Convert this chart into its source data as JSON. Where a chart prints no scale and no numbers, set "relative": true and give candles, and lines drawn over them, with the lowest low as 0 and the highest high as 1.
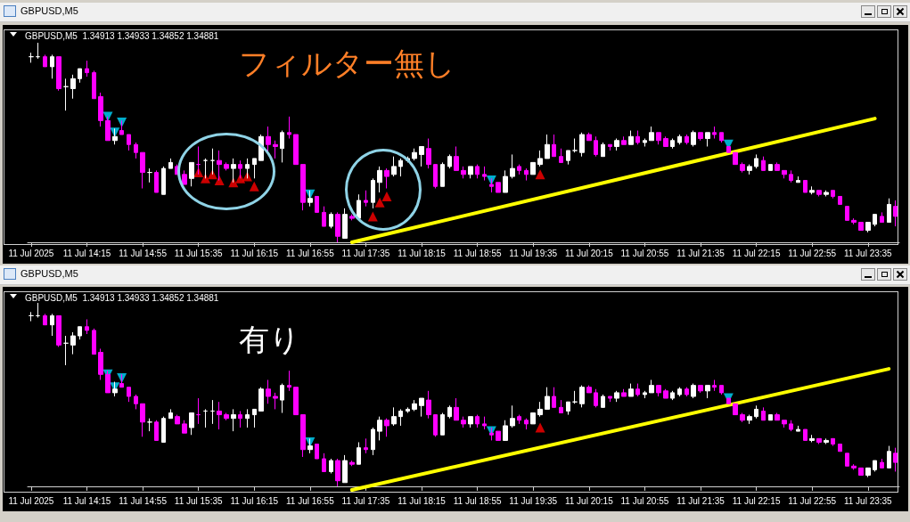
{
  "chart_data": [
    {
      "type": "candlestick",
      "title": "GBPUSD,M5",
      "subtitle": "GBPUSD,M5  1.34913 1.34933 1.34852 1.34881",
      "annotations": [
        "フィルター無し"
      ],
      "relative": true,
      "categories": [
        "11 Jul 2025",
        null,
        null,
        null,
        null,
        null,
        null,
        null,
        "11 Jul 14:15",
        null,
        null,
        null,
        null,
        null,
        null,
        null,
        "11 Jul 14:55",
        null,
        null,
        null,
        null,
        null,
        null,
        null,
        "11 Jul 15:35",
        null,
        null,
        null,
        null,
        null,
        null,
        null,
        "11 Jul 16:15",
        null,
        null,
        null,
        null,
        null,
        null,
        null,
        "11 Jul 16:55",
        null,
        null,
        null,
        null,
        null,
        null,
        null,
        "11 Jul 17:35",
        null,
        null,
        null,
        null,
        null,
        null,
        null,
        "11 Jul 18:15",
        null,
        null,
        null,
        null,
        null,
        null,
        null,
        "11 Jul 18:55",
        null,
        null,
        null,
        null,
        null,
        null,
        null,
        "11 Jul 19:35",
        null,
        null,
        null,
        null,
        null,
        null,
        null,
        "11 Jul 20:15",
        null,
        null,
        null,
        null,
        null,
        null,
        null,
        "11 Jul 20:55",
        null,
        null,
        null,
        null,
        null,
        null,
        null,
        "11 Jul 21:35",
        null,
        null,
        null,
        null,
        null,
        null,
        null,
        "11 Jul 22:15",
        null,
        null,
        null,
        null,
        null,
        null,
        null,
        "11 Jul 22:55",
        null,
        null,
        null,
        null,
        null,
        null,
        null,
        "11 Jul 23:35",
        null,
        null,
        null,
        null
      ],
      "ohlc": [
        [
          0.93,
          0.95,
          0.9,
          0.93
        ],
        [
          0.93,
          1.0,
          0.92,
          0.93
        ],
        [
          0.93,
          0.94,
          0.88,
          0.88
        ],
        [
          0.88,
          0.94,
          0.82,
          0.93
        ],
        [
          0.93,
          0.93,
          0.76,
          0.77
        ],
        [
          0.78,
          0.82,
          0.66,
          0.78
        ],
        [
          0.77,
          0.84,
          0.72,
          0.82
        ],
        [
          0.82,
          0.87,
          0.8,
          0.87
        ],
        [
          0.87,
          0.91,
          0.83,
          0.85
        ],
        [
          0.85,
          0.86,
          0.72,
          0.72
        ],
        [
          0.73,
          0.75,
          0.58,
          0.61
        ],
        [
          0.61,
          0.63,
          0.51,
          0.51
        ],
        [
          0.51,
          0.57,
          0.49,
          0.53
        ],
        [
          0.56,
          0.61,
          0.54,
          0.54
        ],
        [
          0.54,
          0.54,
          0.46,
          0.49
        ],
        [
          0.49,
          0.5,
          0.42,
          0.45
        ],
        [
          0.45,
          0.45,
          0.27,
          0.35
        ],
        [
          0.35,
          0.37,
          0.3,
          0.35
        ],
        [
          0.35,
          0.36,
          0.25,
          0.25
        ],
        [
          0.24,
          0.38,
          0.24,
          0.37
        ],
        [
          0.37,
          0.42,
          0.37,
          0.4
        ],
        [
          0.38,
          0.39,
          0.34,
          0.34
        ],
        [
          0.34,
          0.36,
          0.29,
          0.29
        ],
        [
          0.32,
          0.4,
          0.28,
          0.4
        ],
        [
          0.39,
          0.48,
          0.34,
          0.39
        ],
        [
          0.41,
          0.42,
          0.32,
          0.41
        ],
        [
          0.41,
          0.47,
          0.34,
          0.41
        ],
        [
          0.41,
          0.46,
          0.31,
          0.39
        ],
        [
          0.39,
          0.4,
          0.36,
          0.37
        ],
        [
          0.37,
          0.42,
          0.3,
          0.39
        ],
        [
          0.39,
          0.41,
          0.32,
          0.37
        ],
        [
          0.37,
          0.42,
          0.32,
          0.39
        ],
        [
          0.39,
          0.42,
          0.32,
          0.42
        ],
        [
          0.41,
          0.54,
          0.41,
          0.53
        ],
        [
          0.53,
          0.58,
          0.45,
          0.49
        ],
        [
          0.49,
          0.51,
          0.42,
          0.48
        ],
        [
          0.47,
          0.56,
          0.4,
          0.55
        ],
        [
          0.55,
          0.63,
          0.52,
          0.54
        ],
        [
          0.54,
          0.54,
          0.39,
          0.39
        ],
        [
          0.39,
          0.39,
          0.16,
          0.2
        ],
        [
          0.2,
          0.26,
          0.18,
          0.22
        ],
        [
          0.23,
          0.23,
          0.15,
          0.15
        ],
        [
          0.15,
          0.18,
          0.08,
          0.08
        ],
        [
          0.08,
          0.15,
          0.07,
          0.14
        ],
        [
          0.14,
          0.15,
          0.0,
          0.03
        ],
        [
          0.02,
          0.17,
          0.02,
          0.14
        ],
        [
          0.13,
          0.14,
          0.11,
          0.12
        ],
        [
          0.12,
          0.24,
          0.12,
          0.21
        ],
        [
          0.21,
          0.26,
          0.18,
          0.2
        ],
        [
          0.2,
          0.32,
          0.17,
          0.31
        ],
        [
          0.3,
          0.38,
          0.25,
          0.36
        ],
        [
          0.36,
          0.37,
          0.27,
          0.33
        ],
        [
          0.34,
          0.43,
          0.33,
          0.38
        ],
        [
          0.38,
          0.42,
          0.33,
          0.41
        ],
        [
          0.41,
          0.43,
          0.4,
          0.42
        ],
        [
          0.42,
          0.47,
          0.41,
          0.45
        ],
        [
          0.44,
          0.48,
          0.38,
          0.48
        ],
        [
          0.47,
          0.52,
          0.37,
          0.39
        ],
        [
          0.39,
          0.39,
          0.27,
          0.28
        ],
        [
          0.28,
          0.4,
          0.28,
          0.39
        ],
        [
          0.38,
          0.44,
          0.37,
          0.43
        ],
        [
          0.43,
          0.48,
          0.36,
          0.36
        ],
        [
          0.36,
          0.38,
          0.32,
          0.34
        ],
        [
          0.34,
          0.38,
          0.32,
          0.38
        ],
        [
          0.38,
          0.39,
          0.32,
          0.34
        ],
        [
          0.34,
          0.38,
          0.31,
          0.33
        ],
        [
          0.29,
          0.32,
          0.25,
          0.28
        ],
        [
          0.3,
          0.3,
          0.25,
          0.25
        ],
        [
          0.25,
          0.36,
          0.25,
          0.33
        ],
        [
          0.33,
          0.44,
          0.32,
          0.37
        ],
        [
          0.38,
          0.39,
          0.34,
          0.36
        ],
        [
          0.36,
          0.37,
          0.31,
          0.34
        ],
        [
          0.34,
          0.4,
          0.34,
          0.4
        ],
        [
          0.39,
          0.46,
          0.38,
          0.42
        ],
        [
          0.42,
          0.54,
          0.42,
          0.49
        ],
        [
          0.49,
          0.54,
          0.43,
          0.43
        ],
        [
          0.43,
          0.47,
          0.4,
          0.4
        ],
        [
          0.41,
          0.46,
          0.39,
          0.46
        ],
        [
          0.46,
          0.52,
          0.45,
          0.46
        ],
        [
          0.45,
          0.55,
          0.43,
          0.54
        ],
        [
          0.54,
          0.55,
          0.51,
          0.51
        ],
        [
          0.51,
          0.53,
          0.43,
          0.44
        ],
        [
          0.43,
          0.5,
          0.43,
          0.49
        ],
        [
          0.49,
          0.49,
          0.46,
          0.48
        ],
        [
          0.48,
          0.52,
          0.46,
          0.51
        ],
        [
          0.51,
          0.53,
          0.49,
          0.49
        ],
        [
          0.49,
          0.56,
          0.49,
          0.53
        ],
        [
          0.53,
          0.56,
          0.49,
          0.5
        ],
        [
          0.5,
          0.52,
          0.48,
          0.51
        ],
        [
          0.51,
          0.58,
          0.51,
          0.55
        ],
        [
          0.55,
          0.55,
          0.49,
          0.51
        ],
        [
          0.52,
          0.53,
          0.48,
          0.48
        ],
        [
          0.48,
          0.52,
          0.47,
          0.51
        ],
        [
          0.5,
          0.54,
          0.49,
          0.53
        ],
        [
          0.53,
          0.54,
          0.49,
          0.5
        ],
        [
          0.49,
          0.56,
          0.48,
          0.55
        ],
        [
          0.55,
          0.55,
          0.51,
          0.52
        ],
        [
          0.52,
          0.55,
          0.48,
          0.55
        ],
        [
          0.55,
          0.58,
          0.52,
          0.54
        ],
        [
          0.55,
          0.55,
          0.5,
          0.51
        ],
        [
          0.48,
          0.48,
          0.45,
          0.45
        ],
        [
          0.45,
          0.45,
          0.39,
          0.39
        ],
        [
          0.39,
          0.4,
          0.35,
          0.36
        ],
        [
          0.36,
          0.39,
          0.34,
          0.38
        ],
        [
          0.38,
          0.44,
          0.37,
          0.42
        ],
        [
          0.41,
          0.43,
          0.36,
          0.36
        ],
        [
          0.36,
          0.39,
          0.36,
          0.39
        ],
        [
          0.39,
          0.4,
          0.36,
          0.36
        ],
        [
          0.36,
          0.36,
          0.32,
          0.34
        ],
        [
          0.34,
          0.36,
          0.3,
          0.31
        ],
        [
          0.3,
          0.33,
          0.3,
          0.31
        ],
        [
          0.31,
          0.31,
          0.25,
          0.25
        ],
        [
          0.25,
          0.28,
          0.24,
          0.26
        ],
        [
          0.26,
          0.26,
          0.23,
          0.24
        ],
        [
          0.24,
          0.26,
          0.23,
          0.25
        ],
        [
          0.26,
          0.26,
          0.22,
          0.23
        ],
        [
          0.23,
          0.23,
          0.19,
          0.19
        ],
        [
          0.18,
          0.18,
          0.11,
          0.11
        ],
        [
          0.11,
          0.12,
          0.09,
          0.1
        ],
        [
          0.1,
          0.1,
          0.06,
          0.06
        ],
        [
          0.06,
          0.1,
          0.05,
          0.1
        ],
        [
          0.09,
          0.14,
          0.08,
          0.14
        ],
        [
          0.13,
          0.15,
          0.1,
          0.1
        ],
        [
          0.1,
          0.22,
          0.1,
          0.19
        ],
        [
          0.18,
          0.21,
          0.08,
          0.13
        ]
      ],
      "series": [
        {
          "type": "scatter",
          "color": "#00d8ff",
          "marker": "triangle",
          "values": [
            null,
            null,
            null,
            null,
            null,
            null,
            null,
            null,
            null,
            null,
            null,
            0.63,
            0.55,
            0.6,
            null,
            null,
            null,
            null,
            null,
            null,
            null,
            null,
            null,
            null,
            null,
            null,
            null,
            null,
            null,
            null,
            null,
            null,
            null,
            null,
            null,
            null,
            null,
            null,
            null,
            null,
            0.24,
            null,
            null,
            null,
            null,
            null,
            null,
            null,
            null,
            null,
            null,
            null,
            null,
            null,
            null,
            null,
            null,
            null,
            null,
            null,
            null,
            null,
            null,
            null,
            null,
            null,
            0.31,
            null,
            null,
            null,
            null,
            null,
            null,
            null,
            null,
            null,
            null,
            null,
            null,
            null,
            null,
            null,
            null,
            null,
            null,
            null,
            null,
            null,
            null,
            null,
            null,
            null,
            null,
            null,
            null,
            null,
            null,
            null,
            null,
            null,
            0.49,
            null,
            null,
            null,
            null,
            null,
            null,
            null,
            null,
            null,
            null,
            null,
            null,
            null,
            null,
            null,
            null,
            null,
            null,
            null,
            null,
            null,
            null,
            null,
            null
          ]
        },
        {
          "type": "scatter",
          "color": "#ff0000",
          "marker": "triangle",
          "values": [
            null,
            null,
            null,
            null,
            null,
            null,
            null,
            null,
            null,
            null,
            null,
            null,
            null,
            null,
            null,
            null,
            null,
            null,
            null,
            null,
            null,
            null,
            null,
            null,
            0.35,
            0.32,
            0.34,
            0.31,
            null,
            0.3,
            0.32,
            0.33,
            0.28,
            null,
            null,
            null,
            null,
            null,
            null,
            null,
            null,
            null,
            null,
            null,
            null,
            null,
            null,
            null,
            null,
            0.13,
            0.2,
            0.23,
            null,
            null,
            null,
            null,
            null,
            null,
            null,
            null,
            null,
            null,
            null,
            null,
            null,
            null,
            null,
            null,
            null,
            null,
            null,
            null,
            null,
            0.34,
            null,
            null,
            null,
            null,
            null,
            null,
            null,
            null,
            null,
            null,
            null,
            null,
            null,
            null,
            null,
            null,
            null,
            null,
            null,
            null,
            null,
            null,
            null,
            null,
            null,
            null,
            null,
            null,
            null,
            null,
            null,
            null,
            null,
            null,
            null,
            null,
            null,
            null,
            null,
            null,
            null,
            null,
            null,
            null,
            null,
            null,
            null,
            null,
            null,
            null,
            null
          ]
        },
        {
          "type": "line",
          "color": "#ffff00",
          "line_style": "solid",
          "values": [
            null,
            null,
            null,
            null,
            null,
            null,
            null,
            null,
            null,
            null,
            null,
            null,
            null,
            null,
            null,
            null,
            null,
            null,
            null,
            null,
            null,
            null,
            null,
            null,
            null,
            null,
            null,
            null,
            null,
            null,
            null,
            null,
            null,
            null,
            null,
            null,
            null,
            null,
            null,
            null,
            null,
            null,
            null,
            null,
            null,
            null,
            0,
            null,
            null,
            null,
            null,
            null,
            null,
            null,
            null,
            null,
            null,
            null,
            null,
            null,
            null,
            null,
            null,
            null,
            null,
            null,
            null,
            null,
            null,
            null,
            null,
            null,
            null,
            null,
            null,
            null,
            null,
            null,
            null,
            null,
            null,
            null,
            null,
            null,
            null,
            null,
            null,
            null,
            null,
            null,
            null,
            null,
            null,
            null,
            null,
            null,
            null,
            null,
            null,
            null,
            null,
            null,
            null,
            null,
            null,
            null,
            null,
            null,
            null,
            null,
            null,
            null,
            null,
            null,
            null,
            null,
            null,
            null,
            null,
            null,
            null,
            0.62,
            null,
            null,
            null
          ]
        }
      ]
    },
    {
      "type": "candlestick",
      "title": "GBPUSD,M5",
      "subtitle": "GBPUSD,M5  1.34913 1.34933 1.34852 1.34881",
      "annotations": [
        "有り"
      ],
      "relative": true,
      "categories": [
        "11 Jul 2025",
        null,
        null,
        null,
        null,
        null,
        null,
        null,
        "11 Jul 14:15",
        null,
        null,
        null,
        null,
        null,
        null,
        null,
        "11 Jul 14:55",
        null,
        null,
        null,
        null,
        null,
        null,
        null,
        "11 Jul 15:35",
        null,
        null,
        null,
        null,
        null,
        null,
        null,
        "11 Jul 16:15",
        null,
        null,
        null,
        null,
        null,
        null,
        null,
        "11 Jul 16:55",
        null,
        null,
        null,
        null,
        null,
        null,
        null,
        "11 Jul 17:35",
        null,
        null,
        null,
        null,
        null,
        null,
        null,
        "11 Jul 18:15",
        null,
        null,
        null,
        null,
        null,
        null,
        null,
        "11 Jul 18:55",
        null,
        null,
        null,
        null,
        null,
        null,
        null,
        "11 Jul 19:35",
        null,
        null,
        null,
        null,
        null,
        null,
        null,
        "11 Jul 20:15",
        null,
        null,
        null,
        null,
        null,
        null,
        null,
        "11 Jul 20:55",
        null,
        null,
        null,
        null,
        null,
        null,
        null,
        "11 Jul 21:35",
        null,
        null,
        null,
        null,
        null,
        null,
        null,
        "11 Jul 22:15",
        null,
        null,
        null,
        null,
        null,
        null,
        null,
        "11 Jul 22:55",
        null,
        null,
        null,
        null,
        null,
        null,
        null,
        "11 Jul 23:35",
        null,
        null,
        null,
        null
      ],
      "ohlc": [
        [
          0.93,
          0.95,
          0.9,
          0.93
        ],
        [
          0.93,
          1.0,
          0.92,
          0.93
        ],
        [
          0.93,
          0.94,
          0.88,
          0.88
        ],
        [
          0.88,
          0.94,
          0.82,
          0.93
        ],
        [
          0.93,
          0.93,
          0.76,
          0.77
        ],
        [
          0.78,
          0.82,
          0.66,
          0.78
        ],
        [
          0.77,
          0.84,
          0.72,
          0.82
        ],
        [
          0.82,
          0.87,
          0.8,
          0.87
        ],
        [
          0.87,
          0.91,
          0.83,
          0.85
        ],
        [
          0.85,
          0.86,
          0.72,
          0.72
        ],
        [
          0.73,
          0.75,
          0.58,
          0.61
        ],
        [
          0.61,
          0.63,
          0.51,
          0.51
        ],
        [
          0.51,
          0.57,
          0.49,
          0.53
        ],
        [
          0.56,
          0.61,
          0.54,
          0.54
        ],
        [
          0.54,
          0.54,
          0.46,
          0.49
        ],
        [
          0.49,
          0.5,
          0.42,
          0.45
        ],
        [
          0.45,
          0.45,
          0.27,
          0.35
        ],
        [
          0.35,
          0.37,
          0.3,
          0.35
        ],
        [
          0.35,
          0.36,
          0.25,
          0.25
        ],
        [
          0.24,
          0.38,
          0.24,
          0.37
        ],
        [
          0.37,
          0.42,
          0.37,
          0.4
        ],
        [
          0.38,
          0.39,
          0.34,
          0.34
        ],
        [
          0.34,
          0.36,
          0.29,
          0.29
        ],
        [
          0.32,
          0.4,
          0.28,
          0.4
        ],
        [
          0.39,
          0.48,
          0.34,
          0.39
        ],
        [
          0.41,
          0.42,
          0.32,
          0.41
        ],
        [
          0.41,
          0.47,
          0.34,
          0.41
        ],
        [
          0.41,
          0.46,
          0.31,
          0.39
        ],
        [
          0.39,
          0.4,
          0.36,
          0.37
        ],
        [
          0.37,
          0.42,
          0.3,
          0.39
        ],
        [
          0.39,
          0.41,
          0.32,
          0.37
        ],
        [
          0.37,
          0.42,
          0.32,
          0.39
        ],
        [
          0.39,
          0.42,
          0.32,
          0.42
        ],
        [
          0.41,
          0.54,
          0.41,
          0.53
        ],
        [
          0.53,
          0.58,
          0.45,
          0.49
        ],
        [
          0.49,
          0.51,
          0.42,
          0.48
        ],
        [
          0.47,
          0.56,
          0.4,
          0.55
        ],
        [
          0.55,
          0.63,
          0.52,
          0.54
        ],
        [
          0.54,
          0.54,
          0.39,
          0.39
        ],
        [
          0.39,
          0.39,
          0.16,
          0.2
        ],
        [
          0.2,
          0.26,
          0.18,
          0.22
        ],
        [
          0.23,
          0.23,
          0.15,
          0.15
        ],
        [
          0.15,
          0.18,
          0.08,
          0.08
        ],
        [
          0.08,
          0.15,
          0.07,
          0.14
        ],
        [
          0.14,
          0.15,
          0.0,
          0.03
        ],
        [
          0.02,
          0.17,
          0.02,
          0.14
        ],
        [
          0.13,
          0.14,
          0.11,
          0.12
        ],
        [
          0.12,
          0.24,
          0.12,
          0.21
        ],
        [
          0.21,
          0.26,
          0.18,
          0.2
        ],
        [
          0.2,
          0.32,
          0.17,
          0.31
        ],
        [
          0.3,
          0.38,
          0.25,
          0.36
        ],
        [
          0.36,
          0.37,
          0.27,
          0.33
        ],
        [
          0.34,
          0.43,
          0.33,
          0.38
        ],
        [
          0.38,
          0.42,
          0.33,
          0.41
        ],
        [
          0.41,
          0.43,
          0.4,
          0.42
        ],
        [
          0.42,
          0.47,
          0.41,
          0.45
        ],
        [
          0.44,
          0.48,
          0.38,
          0.48
        ],
        [
          0.47,
          0.52,
          0.37,
          0.39
        ],
        [
          0.39,
          0.39,
          0.27,
          0.28
        ],
        [
          0.28,
          0.4,
          0.28,
          0.39
        ],
        [
          0.38,
          0.44,
          0.37,
          0.43
        ],
        [
          0.43,
          0.48,
          0.36,
          0.36
        ],
        [
          0.36,
          0.38,
          0.32,
          0.34
        ],
        [
          0.34,
          0.38,
          0.32,
          0.38
        ],
        [
          0.38,
          0.39,
          0.32,
          0.34
        ],
        [
          0.34,
          0.38,
          0.31,
          0.33
        ],
        [
          0.29,
          0.32,
          0.25,
          0.28
        ],
        [
          0.3,
          0.3,
          0.25,
          0.25
        ],
        [
          0.25,
          0.36,
          0.25,
          0.33
        ],
        [
          0.33,
          0.44,
          0.32,
          0.37
        ],
        [
          0.38,
          0.39,
          0.34,
          0.36
        ],
        [
          0.36,
          0.37,
          0.31,
          0.34
        ],
        [
          0.34,
          0.4,
          0.34,
          0.4
        ],
        [
          0.39,
          0.46,
          0.38,
          0.42
        ],
        [
          0.42,
          0.54,
          0.42,
          0.49
        ],
        [
          0.49,
          0.54,
          0.43,
          0.43
        ],
        [
          0.43,
          0.47,
          0.4,
          0.4
        ],
        [
          0.41,
          0.46,
          0.39,
          0.46
        ],
        [
          0.46,
          0.52,
          0.45,
          0.46
        ],
        [
          0.45,
          0.55,
          0.43,
          0.54
        ],
        [
          0.54,
          0.55,
          0.51,
          0.51
        ],
        [
          0.51,
          0.53,
          0.43,
          0.44
        ],
        [
          0.43,
          0.5,
          0.43,
          0.49
        ],
        [
          0.49,
          0.49,
          0.46,
          0.48
        ],
        [
          0.48,
          0.52,
          0.46,
          0.51
        ],
        [
          0.51,
          0.53,
          0.49,
          0.49
        ],
        [
          0.49,
          0.56,
          0.49,
          0.53
        ],
        [
          0.53,
          0.56,
          0.49,
          0.5
        ],
        [
          0.5,
          0.52,
          0.48,
          0.51
        ],
        [
          0.51,
          0.58,
          0.51,
          0.55
        ],
        [
          0.55,
          0.55,
          0.49,
          0.51
        ],
        [
          0.52,
          0.53,
          0.48,
          0.48
        ],
        [
          0.48,
          0.52,
          0.47,
          0.51
        ],
        [
          0.5,
          0.54,
          0.49,
          0.53
        ],
        [
          0.53,
          0.54,
          0.49,
          0.5
        ],
        [
          0.49,
          0.56,
          0.48,
          0.55
        ],
        [
          0.55,
          0.55,
          0.51,
          0.52
        ],
        [
          0.52,
          0.55,
          0.48,
          0.55
        ],
        [
          0.55,
          0.58,
          0.52,
          0.54
        ],
        [
          0.55,
          0.55,
          0.5,
          0.51
        ],
        [
          0.48,
          0.48,
          0.45,
          0.45
        ],
        [
          0.45,
          0.45,
          0.39,
          0.39
        ],
        [
          0.39,
          0.4,
          0.35,
          0.36
        ],
        [
          0.36,
          0.39,
          0.34,
          0.38
        ],
        [
          0.38,
          0.44,
          0.37,
          0.42
        ],
        [
          0.41,
          0.43,
          0.36,
          0.36
        ],
        [
          0.36,
          0.39,
          0.36,
          0.39
        ],
        [
          0.39,
          0.4,
          0.36,
          0.36
        ],
        [
          0.36,
          0.36,
          0.32,
          0.34
        ],
        [
          0.34,
          0.36,
          0.3,
          0.31
        ],
        [
          0.3,
          0.33,
          0.3,
          0.31
        ],
        [
          0.31,
          0.31,
          0.25,
          0.25
        ],
        [
          0.25,
          0.28,
          0.24,
          0.26
        ],
        [
          0.26,
          0.26,
          0.23,
          0.24
        ],
        [
          0.24,
          0.26,
          0.23,
          0.25
        ],
        [
          0.26,
          0.26,
          0.22,
          0.23
        ],
        [
          0.23,
          0.23,
          0.19,
          0.19
        ],
        [
          0.18,
          0.18,
          0.11,
          0.11
        ],
        [
          0.11,
          0.12,
          0.09,
          0.1
        ],
        [
          0.1,
          0.1,
          0.06,
          0.06
        ],
        [
          0.06,
          0.1,
          0.05,
          0.1
        ],
        [
          0.09,
          0.14,
          0.08,
          0.14
        ],
        [
          0.13,
          0.15,
          0.1,
          0.1
        ],
        [
          0.1,
          0.22,
          0.1,
          0.19
        ],
        [
          0.18,
          0.21,
          0.08,
          0.13
        ]
      ],
      "series": [
        {
          "type": "scatter",
          "color": "#00d8ff",
          "marker": "triangle",
          "values": [
            null,
            null,
            null,
            null,
            null,
            null,
            null,
            null,
            null,
            null,
            null,
            0.61,
            0.54,
            0.59,
            null,
            null,
            null,
            null,
            null,
            null,
            null,
            null,
            null,
            null,
            null,
            null,
            null,
            null,
            null,
            null,
            null,
            null,
            null,
            null,
            null,
            null,
            null,
            null,
            null,
            null,
            0.24,
            null,
            null,
            null,
            null,
            null,
            null,
            null,
            null,
            null,
            null,
            null,
            null,
            null,
            null,
            null,
            null,
            null,
            null,
            null,
            null,
            null,
            null,
            null,
            null,
            null,
            0.3,
            null,
            null,
            null,
            null,
            null,
            null,
            null,
            null,
            null,
            null,
            null,
            null,
            null,
            null,
            null,
            null,
            null,
            null,
            null,
            null,
            null,
            null,
            null,
            null,
            null,
            null,
            null,
            null,
            null,
            null,
            null,
            null,
            null,
            0.48,
            null,
            null,
            null,
            null,
            null,
            null,
            null,
            null,
            null,
            null,
            null,
            null,
            null,
            null,
            null,
            null,
            null,
            null,
            null,
            null,
            null,
            null,
            null,
            null
          ]
        },
        {
          "type": "scatter",
          "color": "#ff0000",
          "marker": "triangle",
          "values": [
            null,
            null,
            null,
            null,
            null,
            null,
            null,
            null,
            null,
            null,
            null,
            null,
            null,
            null,
            null,
            null,
            null,
            null,
            null,
            null,
            null,
            null,
            null,
            null,
            null,
            null,
            null,
            null,
            null,
            null,
            null,
            null,
            null,
            null,
            null,
            null,
            null,
            null,
            null,
            null,
            null,
            null,
            null,
            null,
            null,
            null,
            null,
            null,
            null,
            null,
            null,
            null,
            null,
            null,
            null,
            null,
            null,
            null,
            null,
            null,
            null,
            null,
            null,
            null,
            null,
            null,
            null,
            null,
            null,
            null,
            null,
            null,
            null,
            0.32,
            null,
            null,
            null,
            null,
            null,
            null,
            null,
            null,
            null,
            null,
            null,
            null,
            null,
            null,
            null,
            null,
            null,
            null,
            null,
            null,
            null,
            null,
            null,
            null,
            null,
            null,
            null,
            null,
            null,
            null,
            null,
            null,
            null,
            null,
            null,
            null,
            null,
            null,
            null,
            null,
            null,
            null,
            null,
            null,
            null,
            null,
            null,
            null,
            null,
            null,
            null
          ]
        },
        {
          "type": "line",
          "color": "#ffff00",
          "line_style": "solid",
          "values": [
            null,
            null,
            null,
            null,
            null,
            null,
            null,
            null,
            null,
            null,
            null,
            null,
            null,
            null,
            null,
            null,
            null,
            null,
            null,
            null,
            null,
            null,
            null,
            null,
            null,
            null,
            null,
            null,
            null,
            null,
            null,
            null,
            null,
            null,
            null,
            null,
            null,
            null,
            null,
            null,
            null,
            null,
            null,
            null,
            null,
            null,
            -0.02,
            null,
            null,
            null,
            null,
            null,
            null,
            null,
            null,
            null,
            null,
            null,
            null,
            null,
            null,
            null,
            null,
            null,
            null,
            null,
            null,
            null,
            null,
            null,
            null,
            null,
            null,
            null,
            null,
            null,
            null,
            null,
            null,
            null,
            null,
            null,
            null,
            null,
            null,
            null,
            null,
            null,
            null,
            null,
            null,
            null,
            null,
            null,
            null,
            null,
            null,
            null,
            null,
            null,
            null,
            null,
            null,
            null,
            null,
            null,
            null,
            null,
            null,
            null,
            null,
            null,
            null,
            null,
            null,
            null,
            null,
            null,
            null,
            null,
            null,
            null,
            null,
            0.64,
            null
          ]
        }
      ]
    }
  ]
}
